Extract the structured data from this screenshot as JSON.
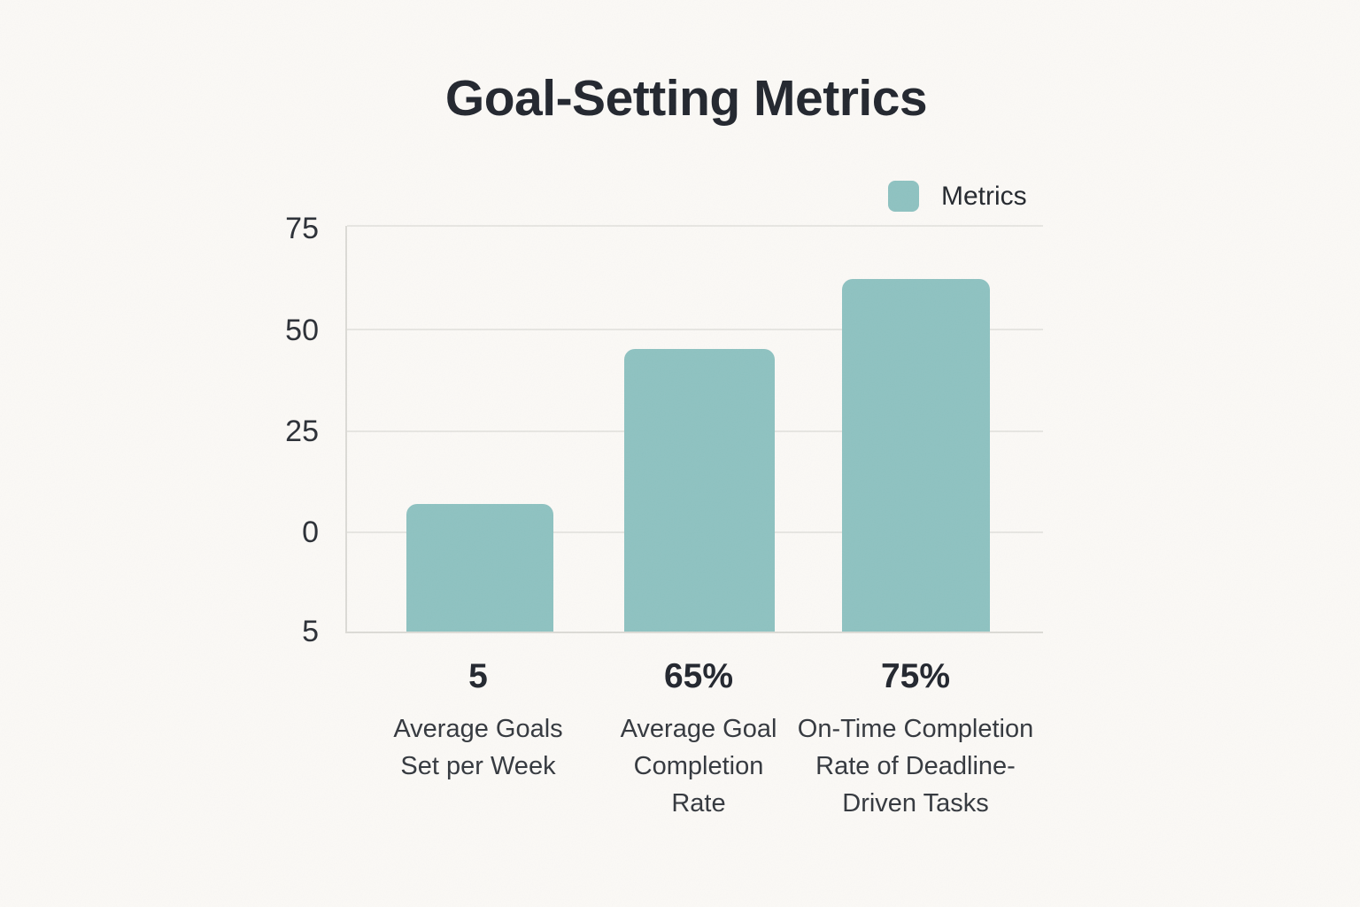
{
  "title": "Goal-Setting Metrics",
  "legend": {
    "label": "Metrics"
  },
  "colors": {
    "background": "#fbf9f6",
    "bar": "#8ec2c1",
    "gridline": "#e7e6e2",
    "axis": "#dcdbd6",
    "title_text": "#22262e",
    "label_text": "#34383e"
  },
  "chart_data": {
    "type": "bar",
    "title": "Goal-Setting Metrics",
    "legend": [
      "Metrics"
    ],
    "legend_position": "top-right",
    "grid": true,
    "bar_color": "#8ec2c1",
    "xlabel": "",
    "ylabel": "",
    "y_tick_labels": [
      "75",
      "50",
      "25",
      "0",
      "5"
    ],
    "categories": [
      "Average Goals Set per Week",
      "Average Goal Completion Rate",
      "On-Time Completion Rate of Deadline-Driven Tasks"
    ],
    "value_labels": [
      "5",
      "65%",
      "75%"
    ],
    "values": [
      5,
      65,
      75
    ],
    "bars": [
      {
        "value_label": "5",
        "description": "Average Goals\nSet per Week",
        "left_pct": 8.5,
        "width_pct": 21.1,
        "height_pct": 31.5
      },
      {
        "value_label": "65%",
        "description": "Average Goal\nCompletion\nRate",
        "left_pct": 39.8,
        "width_pct": 21.6,
        "height_pct": 69.6
      },
      {
        "value_label": "75%",
        "description": "On-Time Completion\nRate of Deadline-\nDriven Tasks",
        "left_pct": 71.1,
        "width_pct": 21.3,
        "height_pct": 87.0
      }
    ]
  }
}
